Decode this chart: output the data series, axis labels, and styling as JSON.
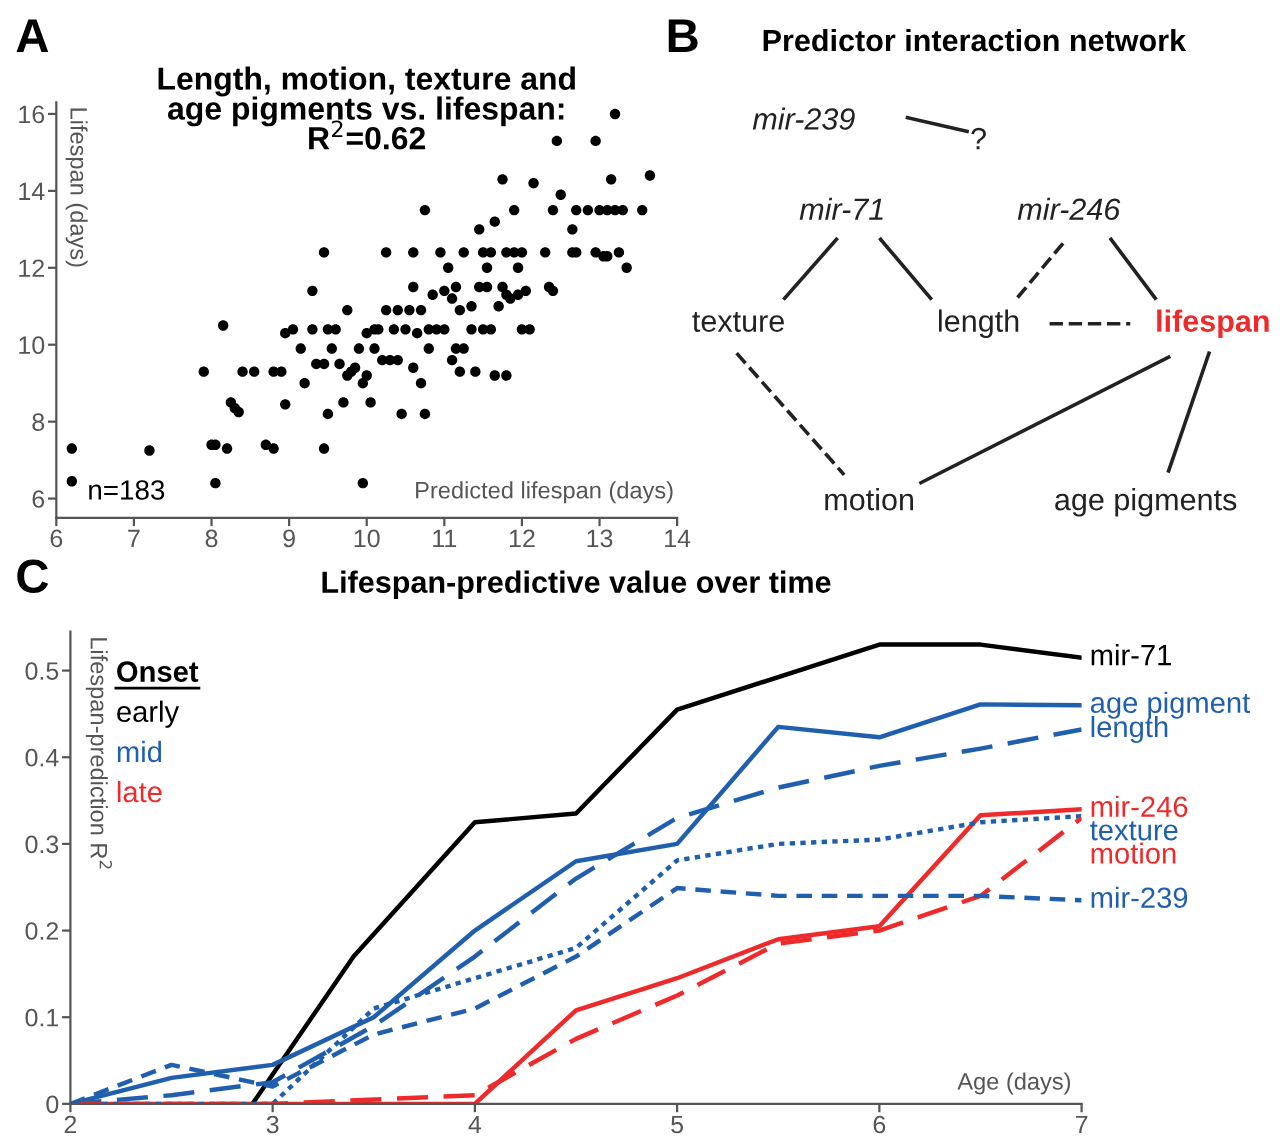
{
  "chart_data": [
    {
      "type": "scatter",
      "title": "Length, motion, texture and\nage pigments vs. lifespan:\nR$^{2}$=0.62",
      "xlabel": "Predicted lifespan (days)",
      "ylabel": "Lifespan (days)",
      "annotations": [
        "A",
        "n=183"
      ],
      "color": "#000000",
      "marker": "circle",
      "grid": false,
      "x": [
        6.2,
        6.2,
        7.2,
        7.9,
        8.0,
        8.05,
        8.05,
        8.2,
        8.15,
        8.25,
        8.3,
        8.35,
        8.4,
        8.55,
        8.7,
        8.8,
        8.8,
        8.9,
        8.95,
        8.95,
        9.05,
        9.15,
        9.2,
        9.3,
        9.3,
        9.35,
        9.45,
        9.45,
        9.45,
        9.5,
        9.5,
        9.55,
        9.6,
        9.65,
        9.7,
        9.75,
        9.75,
        9.8,
        9.85,
        9.9,
        9.95,
        9.95,
        10.0,
        10.0,
        10.05,
        10.1,
        10.1,
        10.15,
        10.2,
        10.25,
        10.25,
        10.3,
        10.35,
        10.4,
        10.4,
        10.45,
        10.5,
        10.55,
        10.6,
        10.6,
        10.6,
        10.65,
        10.7,
        10.7,
        10.75,
        10.75,
        10.8,
        10.8,
        10.85,
        10.9,
        10.95,
        11.0,
        11.0,
        11.05,
        11.1,
        11.1,
        11.15,
        11.15,
        11.2,
        11.2,
        11.25,
        11.25,
        11.35,
        11.35,
        11.4,
        11.45,
        11.45,
        11.5,
        11.5,
        11.55,
        11.55,
        11.6,
        11.6,
        11.65,
        11.65,
        11.7,
        11.75,
        11.75,
        11.8,
        11.8,
        11.8,
        11.85,
        11.9,
        11.9,
        11.95,
        11.95,
        12.0,
        12.0,
        12.05,
        12.1,
        12.15,
        12.3,
        12.35,
        12.4,
        12.4,
        12.45,
        12.5,
        12.65,
        12.65,
        12.7,
        12.7,
        12.85,
        12.95,
        12.95,
        13.0,
        13.05,
        13.1,
        13.1,
        13.15,
        13.2,
        13.2,
        13.25,
        13.3,
        13.35,
        13.55,
        13.65
      ],
      "values": [
        7.3,
        6.45,
        7.25,
        9.3,
        7.4,
        7.4,
        6.4,
        7.3,
        10.5,
        8.5,
        8.35,
        8.25,
        9.3,
        9.3,
        7.4,
        7.3,
        9.3,
        9.3,
        8.45,
        10.3,
        10.4,
        9.9,
        9.0,
        10.4,
        11.4,
        9.5,
        9.5,
        12.4,
        7.3,
        8.2,
        10.4,
        9.9,
        10.4,
        9.5,
        8.5,
        9.2,
        10.9,
        9.3,
        9.4,
        9.9,
        9.0,
        6.4,
        9.2,
        10.3,
        8.5,
        10.4,
        9.9,
        10.4,
        9.6,
        12.4,
        10.9,
        9.6,
        10.4,
        9.6,
        10.9,
        8.2,
        10.4,
        10.9,
        12.4,
        11.5,
        9.4,
        10.3,
        10.9,
        9.0,
        13.5,
        8.2,
        10.4,
        9.9,
        11.3,
        10.4,
        12.4,
        11.4,
        10.4,
        12.0,
        9.6,
        11.2,
        11.5,
        9.9,
        10.9,
        9.3,
        12.4,
        9.9,
        10.4,
        11.0,
        9.3,
        13.0,
        11.5,
        12.4,
        10.4,
        12.0,
        11.5,
        12.4,
        10.4,
        13.2,
        9.2,
        11.0,
        11.5,
        14.3,
        12.4,
        11.3,
        9.2,
        11.2,
        12.4,
        13.5,
        11.3,
        12.0,
        12.4,
        10.4,
        11.4,
        10.4,
        14.2,
        12.4,
        11.5,
        13.5,
        11.4,
        15.3,
        13.9,
        12.4,
        13.0,
        12.4,
        13.5,
        13.5,
        12.4,
        15.3,
        13.5,
        12.3,
        12.3,
        13.5,
        14.3,
        13.5,
        16.0,
        12.4,
        13.5,
        12.0,
        13.5,
        14.4
      ],
      "xlim": [
        6,
        14
      ],
      "xticks": [
        6,
        7,
        8,
        9,
        10,
        11,
        12,
        13,
        14
      ],
      "ylim": [
        5.5,
        16.3
      ],
      "yticks": [
        6,
        8,
        10,
        12,
        14,
        16
      ]
    },
    {
      "type": "other",
      "title": "Predictor interaction network",
      "annotations": [
        "B",
        "mir-239",
        "?",
        "mir-71",
        "mir-246",
        "texture",
        "length",
        "lifespan",
        "motion",
        "age pigments"
      ]
    },
    {
      "type": "line",
      "title": "Lifespan-predictive value over time",
      "xlabel": "Age (days)",
      "ylabel": "Lifespan-prediction R$^{2}$",
      "annotations": [
        "C",
        "Onset",
        "early",
        "mid",
        "late"
      ],
      "legend": false,
      "grid": false,
      "marker": "none",
      "xlim": [
        2,
        7
      ],
      "xticks": [
        2,
        3,
        4,
        5,
        6,
        7
      ],
      "ylim": [
        0,
        0.545
      ],
      "yticks": [
        0,
        0.1,
        0.2,
        0.3,
        0.4,
        0.5
      ],
      "series": [
        {
          "name": "mir-71",
          "color": "#000000",
          "line_style": "solid",
          "x": [
            2.9,
            3.4,
            4,
            4.5,
            5,
            6,
            6.5,
            7
          ],
          "values": [
            0,
            0.17,
            0.325,
            0.335,
            0.455,
            0.53,
            0.53,
            0.515
          ]
        },
        {
          "name": "age pigment",
          "color": "#1f5fae",
          "line_style": "solid",
          "x": [
            2,
            2.5,
            3,
            3.5,
            4,
            4.5,
            5,
            5.5,
            6,
            6.5,
            7
          ],
          "values": [
            0,
            0.03,
            0.045,
            0.1,
            0.2,
            0.28,
            0.3,
            0.435,
            0.423,
            0.461,
            0.46
          ]
        },
        {
          "name": "length",
          "color": "#1f5fae",
          "line_style": "dashed",
          "x": [
            2,
            2.5,
            3,
            3.5,
            4,
            4.5,
            5,
            5.5,
            6,
            6.5,
            7
          ],
          "values": [
            0,
            0.01,
            0.025,
            0.09,
            0.17,
            0.26,
            0.33,
            0.365,
            0.39,
            0.41,
            0.432
          ]
        },
        {
          "name": "mir-246",
          "color": "#ee2a2a",
          "line_style": "solid",
          "x": [
            2,
            3,
            4,
            4.5,
            5,
            5.5,
            6,
            6.5,
            7
          ],
          "values": [
            0,
            0,
            0,
            0.108,
            0.145,
            0.19,
            0.205,
            0.333,
            0.34
          ]
        },
        {
          "name": "texture",
          "color": "#1f5fae",
          "line_style": "dotted",
          "x": [
            2,
            3,
            3.5,
            4,
            4.5,
            5,
            5.5,
            6,
            6.5,
            7
          ],
          "values": [
            0,
            0,
            0.11,
            0.145,
            0.18,
            0.281,
            0.3,
            0.305,
            0.325,
            0.332
          ]
        },
        {
          "name": "motion",
          "color": "#ee2a2a",
          "line_style": "dashed",
          "x": [
            2,
            3,
            4,
            4.5,
            5,
            5.5,
            6,
            6.5,
            7
          ],
          "values": [
            0,
            0,
            0.01,
            0.075,
            0.125,
            0.185,
            0.2,
            0.24,
            0.33
          ]
        },
        {
          "name": "mir-239",
          "color": "#1f5fae",
          "line_style": "shortdash",
          "x": [
            2,
            2.5,
            3,
            3.5,
            4,
            4.5,
            5,
            5.5,
            6,
            6.5,
            7
          ],
          "values": [
            0,
            0.045,
            0.02,
            0.08,
            0.11,
            0.17,
            0.249,
            0.24,
            0.24,
            0.24,
            0.235
          ]
        }
      ]
    }
  ]
}
